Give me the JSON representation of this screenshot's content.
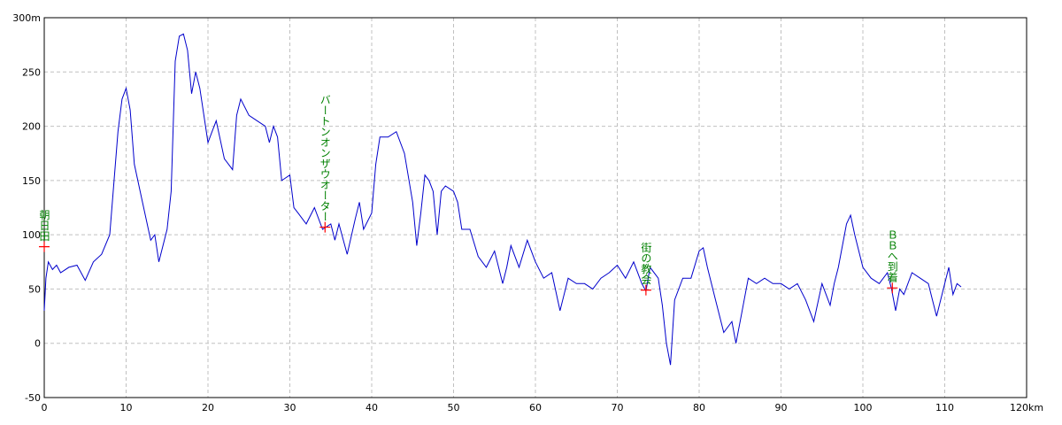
{
  "chart_data": {
    "type": "line",
    "x": [
      0,
      0.2,
      0.5,
      1,
      1.5,
      2,
      3,
      4,
      5,
      6,
      7,
      8,
      9,
      9.5,
      10,
      10.5,
      11,
      12,
      13,
      13.5,
      14,
      15,
      15.5,
      16,
      16.5,
      17,
      17.5,
      18,
      18.5,
      19,
      20,
      20.5,
      21,
      22,
      23,
      23.5,
      24,
      25,
      26,
      27,
      27.5,
      28,
      28.5,
      29,
      30,
      30.5,
      31,
      32,
      33,
      34,
      35,
      35.5,
      36,
      37,
      38,
      38.5,
      39,
      40,
      40.5,
      41,
      42,
      43,
      44,
      45,
      45.5,
      46,
      46.5,
      47,
      47.5,
      48,
      48.5,
      49,
      50,
      50.5,
      51,
      52,
      53,
      54,
      55,
      56,
      56.5,
      57,
      58,
      59,
      60,
      61,
      62,
      63,
      64,
      65,
      66,
      67,
      68,
      69,
      70,
      71,
      72,
      73,
      73.5,
      74,
      75,
      75.5,
      76,
      76.5,
      77,
      78,
      79,
      80,
      80.5,
      81,
      82,
      83,
      84,
      84.5,
      85,
      86,
      87,
      88,
      89,
      90,
      91,
      92,
      93,
      94,
      95,
      96,
      96.5,
      97,
      98,
      98.5,
      99,
      100,
      101,
      102,
      103,
      103.5,
      104,
      104.5,
      105,
      106,
      107,
      108,
      108.5,
      109,
      110,
      110.5,
      111,
      111.5,
      112
    ],
    "series": [
      {
        "color": "#0000cc",
        "values": [
          30,
          60,
          75,
          68,
          72,
          65,
          70,
          72,
          58,
          75,
          82,
          100,
          195,
          225,
          235,
          215,
          165,
          130,
          95,
          100,
          75,
          105,
          140,
          260,
          283,
          285,
          270,
          230,
          250,
          235,
          185,
          195,
          205,
          170,
          160,
          210,
          225,
          210,
          205,
          200,
          185,
          200,
          190,
          150,
          155,
          125,
          120,
          110,
          125,
          105,
          110,
          95,
          110,
          82,
          115,
          130,
          105,
          120,
          165,
          190,
          190,
          195,
          175,
          130,
          90,
          120,
          155,
          150,
          140,
          100,
          140,
          145,
          140,
          130,
          105,
          105,
          80,
          70,
          85,
          55,
          70,
          90,
          70,
          95,
          75,
          60,
          65,
          30,
          60,
          55,
          55,
          50,
          60,
          65,
          72,
          60,
          75,
          55,
          48,
          70,
          60,
          35,
          0,
          -20,
          40,
          60,
          60,
          85,
          88,
          70,
          40,
          10,
          20,
          0,
          20,
          60,
          55,
          60,
          55,
          55,
          50,
          55,
          40,
          20,
          55,
          35,
          55,
          70,
          110,
          118,
          100,
          70,
          60,
          55,
          65,
          50,
          30,
          50,
          45,
          65,
          60,
          55,
          40,
          25,
          55,
          70,
          45,
          55,
          52
        ]
      }
    ],
    "xlim": [
      0,
      120
    ],
    "xticks": [
      0,
      10,
      20,
      30,
      40,
      50,
      60,
      70,
      80,
      90,
      100,
      110,
      {
        "value": 120,
        "label": "120km"
      }
    ],
    "ylim": [
      -50,
      300
    ],
    "yticks": [
      -50,
      0,
      50,
      100,
      150,
      200,
      250,
      {
        "value": 300,
        "label": "300m"
      }
    ],
    "grid": true,
    "annotations": [
      {
        "text": "朝日田",
        "x": 0,
        "y": 89,
        "color": "#008000",
        "marker_color": "#ff0000"
      },
      {
        "text": "バートンオンザウオーター",
        "x": 34.3,
        "y": 107,
        "color": "#008000",
        "marker_color": "#ff0000"
      },
      {
        "text": "街の教会",
        "x": 73.5,
        "y": 49,
        "color": "#008000",
        "marker_color": "#ff0000"
      },
      {
        "text": "ＢＢへ到着",
        "x": 103.6,
        "y": 51,
        "color": "#008000",
        "marker_color": "#ff0000"
      }
    ]
  }
}
